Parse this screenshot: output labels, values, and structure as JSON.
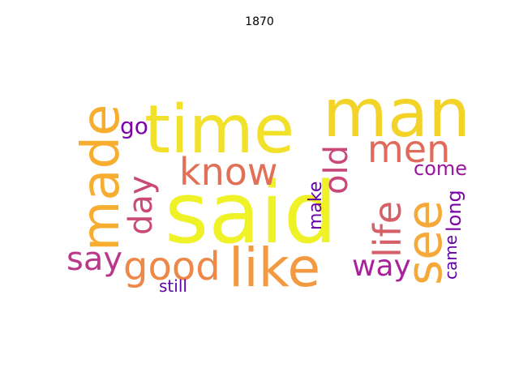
{
  "title": "1870",
  "words": [
    {
      "text": "said",
      "color": "#eef227"
    },
    {
      "text": "time",
      "color": "#f2e12b"
    },
    {
      "text": "man",
      "color": "#f3d327"
    },
    {
      "text": "made",
      "color": "#f7ad30"
    },
    {
      "text": "see",
      "color": "#f5a93a"
    },
    {
      "text": "like",
      "color": "#f39a41"
    },
    {
      "text": "good",
      "color": "#ee8848"
    },
    {
      "text": "know",
      "color": "#e27056"
    },
    {
      "text": "men",
      "color": "#e06b5b"
    },
    {
      "text": "life",
      "color": "#d65f68"
    },
    {
      "text": "day",
      "color": "#c94a76"
    },
    {
      "text": "old",
      "color": "#c8487a"
    },
    {
      "text": "say",
      "color": "#b93889"
    },
    {
      "text": "way",
      "color": "#a8219b"
    },
    {
      "text": "come",
      "color": "#9c159f"
    },
    {
      "text": "go",
      "color": "#7d03a8"
    },
    {
      "text": "long",
      "color": "#7d03a8"
    },
    {
      "text": "make",
      "color": "#6a00a8"
    },
    {
      "text": "came",
      "color": "#6300a7"
    },
    {
      "text": "still",
      "color": "#5d01a6"
    }
  ]
}
